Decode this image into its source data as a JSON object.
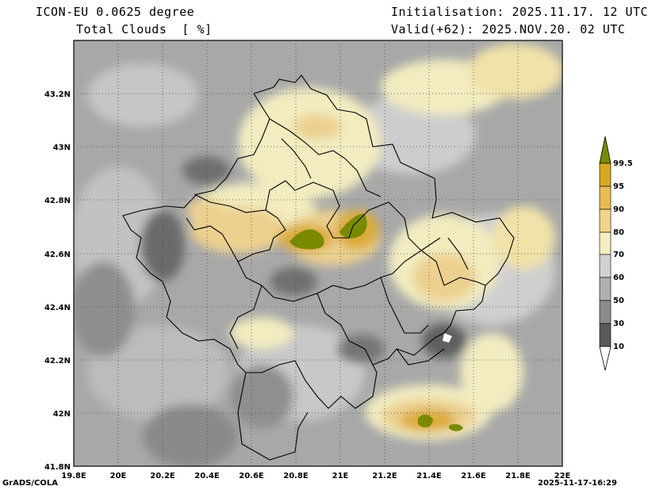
{
  "header": {
    "model": "ICON-EU 0.0625 degree",
    "field": "Total Clouds  [ %]",
    "init": "Initialisation: 2025.11.17. 12 UTC",
    "valid": "Valid(+62): 2025.NOV.20. 02 UTC"
  },
  "footer": {
    "left": "GrADS/COLA",
    "right": "2025-11-17-16:29"
  },
  "axes": {
    "lon_labels": [
      "19.8E",
      "20E",
      "20.2E",
      "20.4E",
      "20.6E",
      "20.8E",
      "21E",
      "21.2E",
      "21.4E",
      "21.6E",
      "21.8E",
      "22E"
    ],
    "lat_labels": [
      "43.2N",
      "43N",
      "42.8N",
      "42.6N",
      "42.4N",
      "42.2N",
      "42N",
      "41.8N"
    ],
    "lon_range": [
      19.8,
      22.0
    ],
    "lat_range": [
      41.8,
      43.4
    ]
  },
  "colorbar": {
    "labels": [
      "99.5",
      "95",
      "90",
      "80",
      "70",
      "60",
      "50",
      "30",
      "10"
    ],
    "colors": [
      "#7a8a00",
      "#d8a820",
      "#e8bc55",
      "#f0d48a",
      "#f4eec0",
      "#d2d2d2",
      "#b0b0b0",
      "#8c8c8c",
      "#5a5a5a"
    ]
  }
}
